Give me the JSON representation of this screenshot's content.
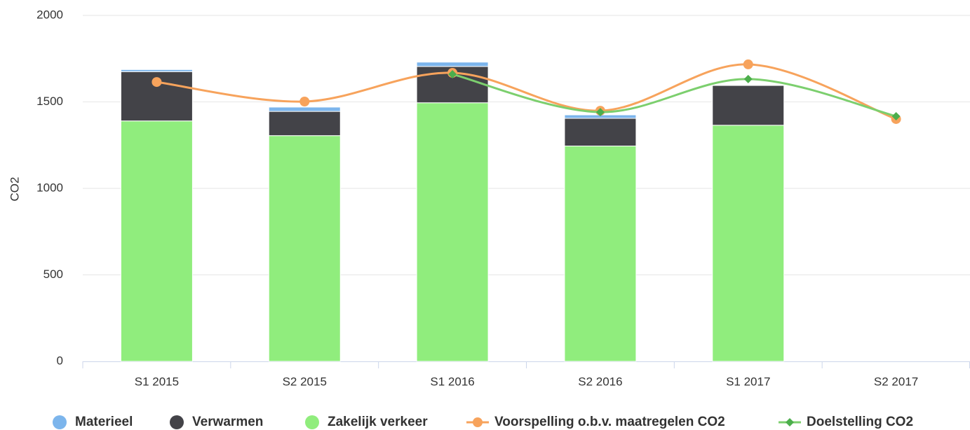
{
  "chart_data": {
    "type": "bar",
    "stacked": true,
    "grid": true,
    "yaxis_label": "CO2",
    "categories": [
      "S1 2015",
      "S2 2015",
      "S1 2016",
      "S2 2016",
      "S1 2017",
      "S2 2017"
    ],
    "ylim": [
      0,
      2000
    ],
    "yticks": [
      0,
      500,
      1000,
      1500,
      2000
    ],
    "legend": "bottom",
    "series": [
      {
        "name": "Materieel",
        "type": "column",
        "color": "#7cb5ec",
        "values": [
          12,
          25,
          25,
          20,
          0,
          null
        ]
      },
      {
        "name": "Verwarmen",
        "type": "column",
        "color": "#434348",
        "values": [
          285,
          140,
          210,
          160,
          230,
          null
        ]
      },
      {
        "name": "Zakelijk verkeer",
        "type": "column",
        "color": "#90ed7d",
        "values": [
          1390,
          1305,
          1495,
          1245,
          1365,
          null
        ]
      },
      {
        "name": "Voorspelling o.b.v. maatregelen CO2",
        "type": "spline",
        "marker": "circle",
        "color": "#f7a35c",
        "values": [
          1615,
          1502,
          1668,
          1449,
          1717,
          1401
        ]
      },
      {
        "name": "Doelstelling CO2",
        "type": "spline",
        "marker": "diamond",
        "color": "#7ccf6e",
        "values": [
          null,
          null,
          1660,
          1441,
          1632,
          1417
        ]
      }
    ]
  }
}
